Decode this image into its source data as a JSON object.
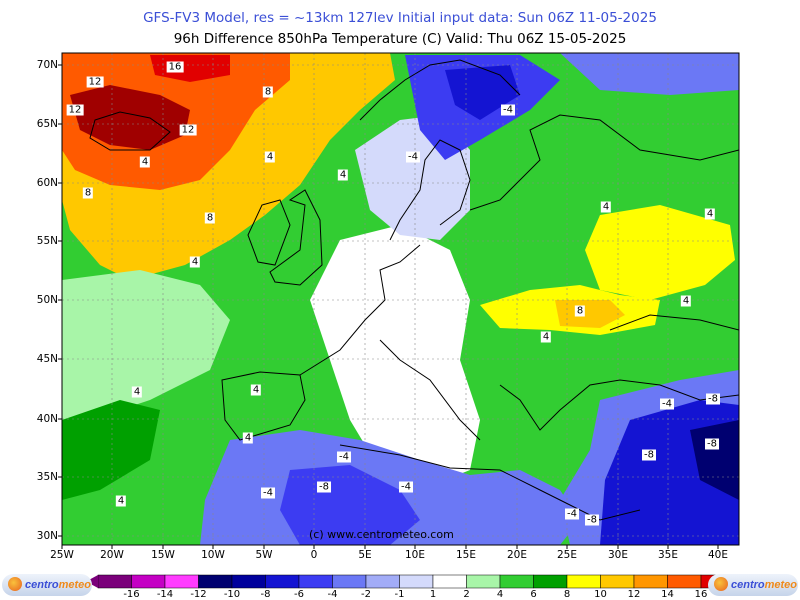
{
  "header": {
    "line1": "GFS-FV3 Model, res = ~13km 127lev    Initial input data: Sun 06Z 11-05-2025",
    "line2": "96h Difference 850hPa Temperature (C)  Valid: Thu 06Z 15-05-2025"
  },
  "axes": {
    "latitudes": [
      "70N",
      "65N",
      "60N",
      "55N",
      "50N",
      "45N",
      "40N",
      "35N",
      "30N"
    ],
    "longitudes": [
      "25W",
      "20W",
      "15W",
      "10W",
      "5W",
      "0",
      "5E",
      "10E",
      "15E",
      "20E",
      "25E",
      "30E",
      "35E",
      "40E"
    ]
  },
  "legend": {
    "labels": [
      "-16",
      "-14",
      "-12",
      "-10",
      "-8",
      "-6",
      "-4",
      "-2",
      "-1",
      "1",
      "2",
      "4",
      "6",
      "8",
      "10",
      "12",
      "14",
      "16"
    ],
    "colors": [
      "#7a007a",
      "#c400c4",
      "#ff3cff",
      "#000070",
      "#00009c",
      "#1414d2",
      "#3c3cf2",
      "#6b78f5",
      "#a2acf7",
      "#d4dafb",
      "#ffffff",
      "#a8f5a8",
      "#32cd32",
      "#00a000",
      "#ffff00",
      "#ffc800",
      "#ff9600",
      "#ff5a00",
      "#e10000",
      "#a00000"
    ]
  },
  "contour_labels": [
    "16",
    "12",
    "8",
    "12",
    "12",
    "4",
    "8",
    "8",
    "4",
    "4",
    "4",
    "-4",
    "-4",
    "4",
    "4",
    "4",
    "8",
    "4",
    "4",
    "4",
    "4",
    "4",
    "-4",
    "-8",
    "-4",
    "-4",
    "-8",
    "-4",
    "-8",
    "-4",
    "-8",
    "-8"
  ],
  "credit": "(c) www.centrometeo.com",
  "logo": {
    "part1": "centro",
    "part2": "meteo"
  },
  "colors": {
    "title_blue": "#3b4fd6",
    "logo_orange": "#ef8a1b"
  }
}
